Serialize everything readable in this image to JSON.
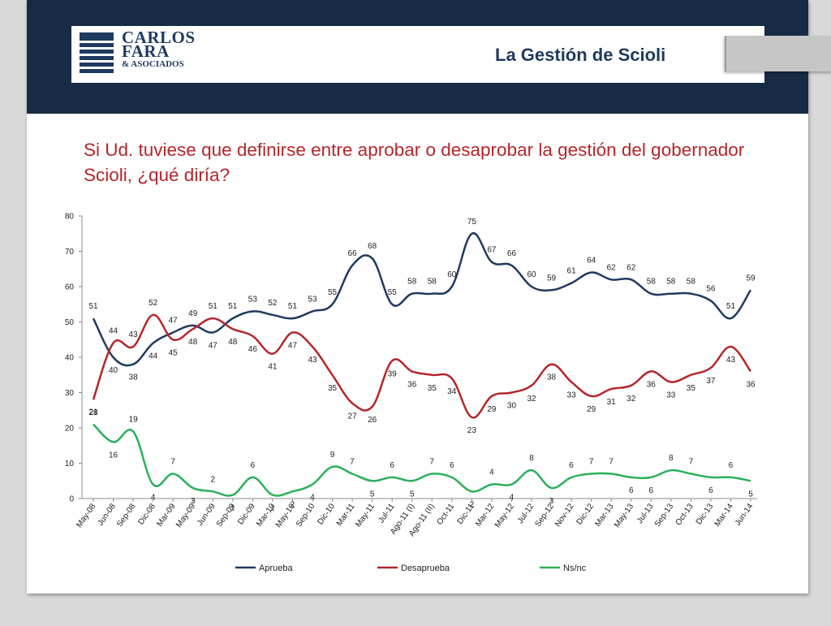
{
  "header": {
    "logo": {
      "line1": "CARLOS",
      "line2": "FARA",
      "line3": "& ASOCIADOS"
    },
    "title": "La Gestión de Scioli"
  },
  "question": "Si Ud. tuviese que definirse entre aprobar o desaprobar la gestión del gobernador Scioli, ¿qué diría?",
  "colors": {
    "banner": "#172b45",
    "aprueba": "#1f3a5f",
    "desaprueba": "#b4262a",
    "nsnc": "#2bb05a",
    "question": "#b4262a"
  },
  "chart_data": {
    "type": "line",
    "title": "",
    "xlabel": "",
    "ylabel": "",
    "ylim": [
      0,
      80
    ],
    "yticks": [
      0,
      10,
      20,
      30,
      40,
      50,
      60,
      70,
      80
    ],
    "grid": false,
    "legend_position": "bottom",
    "categories": [
      "May-08",
      "Jun-08",
      "Sep-08",
      "Dic-08",
      "Mar-09",
      "May-09",
      "Jun-09",
      "Sep-09",
      "Dic-09",
      "Mar-10",
      "May-10",
      "Sep-10",
      "Dic-10",
      "Mar-11",
      "May-11",
      "Jul-11",
      "Ago-11 (I)",
      "Ago-11 (II)",
      "Oct-11",
      "Dic-11",
      "Mar-12",
      "May-12",
      "Jul-12",
      "Sep-12",
      "Nov-12",
      "Dic-12",
      "Mar-13",
      "May-13",
      "Jul-13",
      "Sep-13",
      "Oct-13",
      "Dic-13",
      "Mar-14",
      "Jun-14"
    ],
    "series": [
      {
        "name": "Aprueba",
        "values": [
          51,
          40,
          38,
          44,
          47,
          49,
          47,
          51,
          53,
          52,
          51,
          53,
          55,
          66,
          68,
          55,
          58,
          58,
          60,
          75,
          67,
          66,
          60,
          59,
          61,
          64,
          62,
          62,
          58,
          58,
          58,
          56,
          51,
          59
        ]
      },
      {
        "name": "Desaprueba",
        "values": [
          28,
          44,
          43,
          52,
          45,
          48,
          51,
          48,
          46,
          41,
          47,
          43,
          35,
          27,
          26,
          39,
          36,
          35,
          34,
          23,
          29,
          30,
          32,
          38,
          33,
          29,
          31,
          32,
          36,
          33,
          35,
          37,
          43,
          36
        ]
      },
      {
        "name": "Ns/nc",
        "values": [
          21,
          16,
          19,
          4,
          7,
          3,
          2,
          1,
          6,
          1,
          2,
          4,
          9,
          7,
          5,
          6,
          5,
          7,
          6,
          2,
          4,
          4,
          8,
          3,
          6,
          7,
          7,
          6,
          6,
          8,
          7,
          6,
          6,
          5
        ]
      }
    ]
  }
}
